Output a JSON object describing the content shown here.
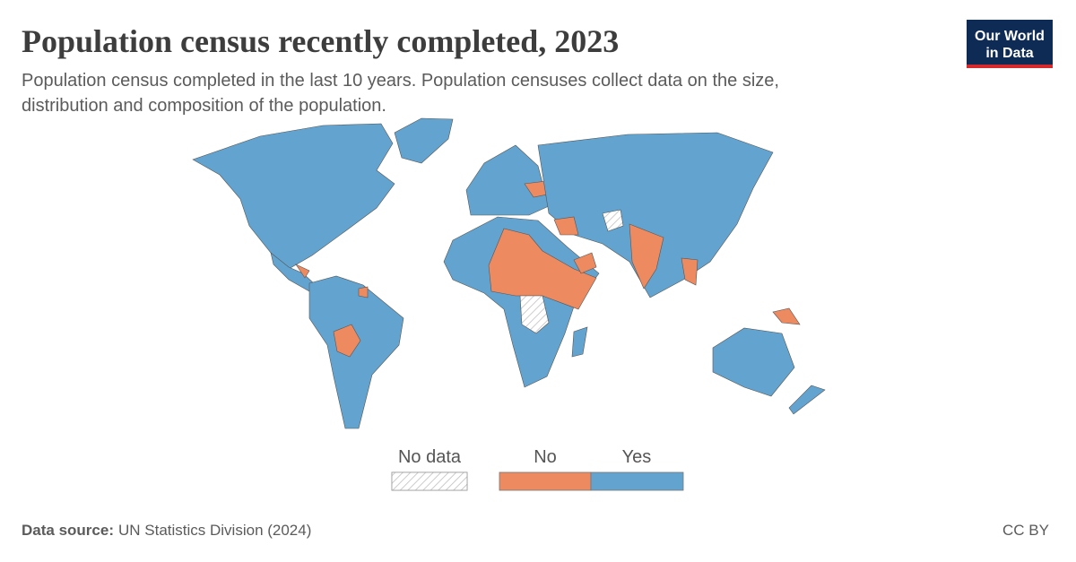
{
  "header": {
    "title": "Population census recently completed, 2023",
    "subtitle_lines": [
      "Population census completed in the last 10 years. Population censuses collect data on the size,",
      "distribution and composition of the population."
    ]
  },
  "logo": {
    "lines": [
      "Our World",
      "in Data"
    ]
  },
  "legend": {
    "items": [
      {
        "name": "No data",
        "color": "#ffffff"
      },
      {
        "name": "No",
        "color": "#ee8a5f"
      },
      {
        "name": "Yes",
        "color": "#62a4cf"
      }
    ]
  },
  "footer": {
    "source_label": "Data source:",
    "source": "UN Statistics Division (2024)",
    "license": "CC BY"
  }
}
